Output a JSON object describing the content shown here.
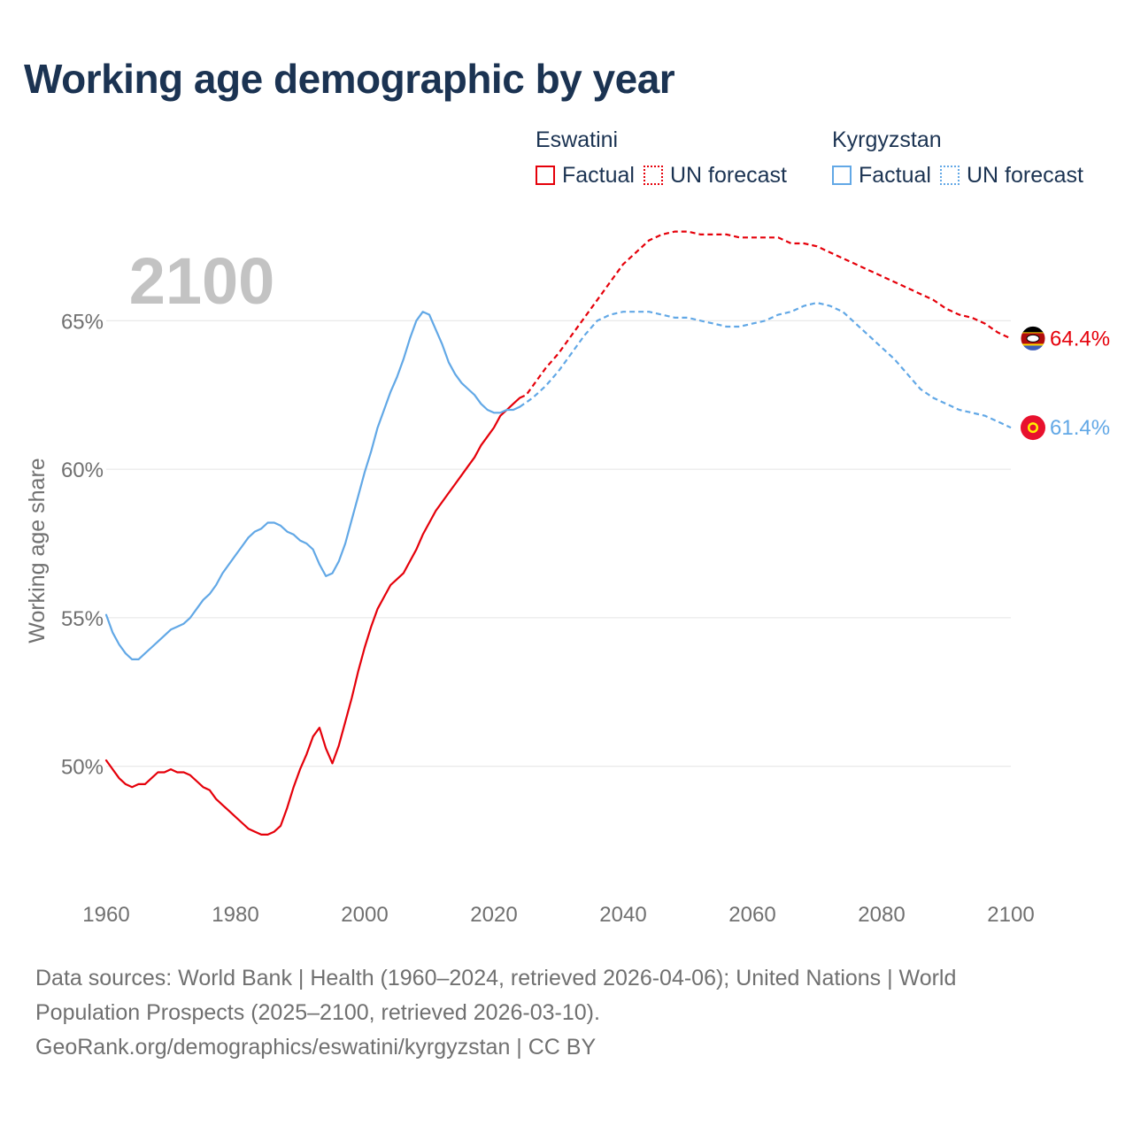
{
  "title": "Working age demographic by year",
  "legend": {
    "groups": [
      {
        "name": "Eswatini",
        "factual_label": "Factual",
        "forecast_label": "UN forecast",
        "color": "#e5000a"
      },
      {
        "name": "Kyrgyzstan",
        "factual_label": "Factual",
        "forecast_label": "UN forecast",
        "color": "#62a8e6"
      }
    ]
  },
  "source": {
    "line1": "Data sources: World Bank | Health (1960–2024, retrieved 2026-04-06); United Nations | World",
    "line2": "Population Prospects (2025–2100, retrieved 2026-03-10).",
    "line3": "GeoRank.org/demographics/eswatini/kyrgyzstan | CC BY"
  },
  "chart_data": {
    "type": "line",
    "title": "Working age demographic by year",
    "ylabel": "Working age share",
    "xlabel": "",
    "year_label": "2100",
    "xlim": [
      1960,
      2100
    ],
    "ylim": [
      46,
      69
    ],
    "x_ticks": [
      1960,
      1980,
      2000,
      2020,
      2040,
      2060,
      2080,
      2100
    ],
    "x_tick_labels": [
      "1960",
      "1980",
      "2000",
      "2020",
      "2040",
      "2060",
      "2080",
      "2100"
    ],
    "y_ticks": [
      50,
      55,
      60,
      65
    ],
    "y_tick_labels": [
      "50%",
      "55%",
      "60%",
      "65%"
    ],
    "forecast_start": 2024,
    "series": [
      {
        "name": "Eswatini",
        "color": "#e5000a",
        "end_label": "64.4%",
        "flag": "eswatini-flag",
        "points": [
          [
            1960,
            50.2
          ],
          [
            1961,
            49.9
          ],
          [
            1962,
            49.6
          ],
          [
            1963,
            49.4
          ],
          [
            1964,
            49.3
          ],
          [
            1965,
            49.4
          ],
          [
            1966,
            49.4
          ],
          [
            1967,
            49.6
          ],
          [
            1968,
            49.8
          ],
          [
            1969,
            49.8
          ],
          [
            1970,
            49.9
          ],
          [
            1971,
            49.8
          ],
          [
            1972,
            49.8
          ],
          [
            1973,
            49.7
          ],
          [
            1974,
            49.5
          ],
          [
            1975,
            49.3
          ],
          [
            1976,
            49.2
          ],
          [
            1977,
            48.9
          ],
          [
            1978,
            48.7
          ],
          [
            1979,
            48.5
          ],
          [
            1980,
            48.3
          ],
          [
            1981,
            48.1
          ],
          [
            1982,
            47.9
          ],
          [
            1983,
            47.8
          ],
          [
            1984,
            47.7
          ],
          [
            1985,
            47.7
          ],
          [
            1986,
            47.8
          ],
          [
            1987,
            48.0
          ],
          [
            1988,
            48.6
          ],
          [
            1989,
            49.3
          ],
          [
            1990,
            49.9
          ],
          [
            1991,
            50.4
          ],
          [
            1992,
            51.0
          ],
          [
            1993,
            51.3
          ],
          [
            1994,
            50.6
          ],
          [
            1995,
            50.1
          ],
          [
            1996,
            50.7
          ],
          [
            1997,
            51.5
          ],
          [
            1998,
            52.3
          ],
          [
            1999,
            53.2
          ],
          [
            2000,
            54.0
          ],
          [
            2001,
            54.7
          ],
          [
            2002,
            55.3
          ],
          [
            2003,
            55.7
          ],
          [
            2004,
            56.1
          ],
          [
            2005,
            56.3
          ],
          [
            2006,
            56.5
          ],
          [
            2007,
            56.9
          ],
          [
            2008,
            57.3
          ],
          [
            2009,
            57.8
          ],
          [
            2010,
            58.2
          ],
          [
            2011,
            58.6
          ],
          [
            2012,
            58.9
          ],
          [
            2013,
            59.2
          ],
          [
            2014,
            59.5
          ],
          [
            2015,
            59.8
          ],
          [
            2016,
            60.1
          ],
          [
            2017,
            60.4
          ],
          [
            2018,
            60.8
          ],
          [
            2019,
            61.1
          ],
          [
            2020,
            61.4
          ],
          [
            2021,
            61.8
          ],
          [
            2022,
            62.0
          ],
          [
            2023,
            62.2
          ],
          [
            2024,
            62.4
          ],
          [
            2025,
            62.5
          ],
          [
            2026,
            62.8
          ],
          [
            2028,
            63.4
          ],
          [
            2030,
            63.9
          ],
          [
            2032,
            64.5
          ],
          [
            2034,
            65.1
          ],
          [
            2036,
            65.7
          ],
          [
            2038,
            66.3
          ],
          [
            2040,
            66.9
          ],
          [
            2042,
            67.3
          ],
          [
            2044,
            67.7
          ],
          [
            2046,
            67.9
          ],
          [
            2048,
            68.0
          ],
          [
            2050,
            68.0
          ],
          [
            2052,
            67.9
          ],
          [
            2054,
            67.9
          ],
          [
            2056,
            67.9
          ],
          [
            2058,
            67.8
          ],
          [
            2060,
            67.8
          ],
          [
            2062,
            67.8
          ],
          [
            2064,
            67.8
          ],
          [
            2066,
            67.6
          ],
          [
            2068,
            67.6
          ],
          [
            2070,
            67.5
          ],
          [
            2072,
            67.3
          ],
          [
            2074,
            67.1
          ],
          [
            2076,
            66.9
          ],
          [
            2078,
            66.7
          ],
          [
            2080,
            66.5
          ],
          [
            2082,
            66.3
          ],
          [
            2084,
            66.1
          ],
          [
            2086,
            65.9
          ],
          [
            2088,
            65.7
          ],
          [
            2090,
            65.4
          ],
          [
            2092,
            65.2
          ],
          [
            2094,
            65.1
          ],
          [
            2096,
            64.9
          ],
          [
            2098,
            64.6
          ],
          [
            2100,
            64.4
          ]
        ]
      },
      {
        "name": "Kyrgyzstan",
        "color": "#62a8e6",
        "end_label": "61.4%",
        "flag": "kyrgyzstan-flag",
        "points": [
          [
            1960,
            55.1
          ],
          [
            1961,
            54.5
          ],
          [
            1962,
            54.1
          ],
          [
            1963,
            53.8
          ],
          [
            1964,
            53.6
          ],
          [
            1965,
            53.6
          ],
          [
            1966,
            53.8
          ],
          [
            1967,
            54.0
          ],
          [
            1968,
            54.2
          ],
          [
            1969,
            54.4
          ],
          [
            1970,
            54.6
          ],
          [
            1971,
            54.7
          ],
          [
            1972,
            54.8
          ],
          [
            1973,
            55.0
          ],
          [
            1974,
            55.3
          ],
          [
            1975,
            55.6
          ],
          [
            1976,
            55.8
          ],
          [
            1977,
            56.1
          ],
          [
            1978,
            56.5
          ],
          [
            1979,
            56.8
          ],
          [
            1980,
            57.1
          ],
          [
            1981,
            57.4
          ],
          [
            1982,
            57.7
          ],
          [
            1983,
            57.9
          ],
          [
            1984,
            58.0
          ],
          [
            1985,
            58.2
          ],
          [
            1986,
            58.2
          ],
          [
            1987,
            58.1
          ],
          [
            1988,
            57.9
          ],
          [
            1989,
            57.8
          ],
          [
            1990,
            57.6
          ],
          [
            1991,
            57.5
          ],
          [
            1992,
            57.3
          ],
          [
            1993,
            56.8
          ],
          [
            1994,
            56.4
          ],
          [
            1995,
            56.5
          ],
          [
            1996,
            56.9
          ],
          [
            1997,
            57.5
          ],
          [
            1998,
            58.3
          ],
          [
            1999,
            59.1
          ],
          [
            2000,
            59.9
          ],
          [
            2001,
            60.6
          ],
          [
            2002,
            61.4
          ],
          [
            2003,
            62.0
          ],
          [
            2004,
            62.6
          ],
          [
            2005,
            63.1
          ],
          [
            2006,
            63.7
          ],
          [
            2007,
            64.4
          ],
          [
            2008,
            65.0
          ],
          [
            2009,
            65.3
          ],
          [
            2010,
            65.2
          ],
          [
            2011,
            64.7
          ],
          [
            2012,
            64.2
          ],
          [
            2013,
            63.6
          ],
          [
            2014,
            63.2
          ],
          [
            2015,
            62.9
          ],
          [
            2016,
            62.7
          ],
          [
            2017,
            62.5
          ],
          [
            2018,
            62.2
          ],
          [
            2019,
            62.0
          ],
          [
            2020,
            61.9
          ],
          [
            2021,
            61.9
          ],
          [
            2022,
            62.0
          ],
          [
            2023,
            62.0
          ],
          [
            2024,
            62.1
          ],
          [
            2026,
            62.4
          ],
          [
            2028,
            62.8
          ],
          [
            2030,
            63.3
          ],
          [
            2032,
            63.9
          ],
          [
            2034,
            64.5
          ],
          [
            2036,
            65.0
          ],
          [
            2038,
            65.2
          ],
          [
            2040,
            65.3
          ],
          [
            2042,
            65.3
          ],
          [
            2044,
            65.3
          ],
          [
            2046,
            65.2
          ],
          [
            2048,
            65.1
          ],
          [
            2050,
            65.1
          ],
          [
            2052,
            65.0
          ],
          [
            2054,
            64.9
          ],
          [
            2056,
            64.8
          ],
          [
            2058,
            64.8
          ],
          [
            2060,
            64.9
          ],
          [
            2062,
            65.0
          ],
          [
            2064,
            65.2
          ],
          [
            2066,
            65.3
          ],
          [
            2068,
            65.5
          ],
          [
            2070,
            65.6
          ],
          [
            2072,
            65.5
          ],
          [
            2074,
            65.3
          ],
          [
            2076,
            64.9
          ],
          [
            2078,
            64.5
          ],
          [
            2080,
            64.1
          ],
          [
            2082,
            63.7
          ],
          [
            2084,
            63.2
          ],
          [
            2086,
            62.7
          ],
          [
            2088,
            62.4
          ],
          [
            2090,
            62.2
          ],
          [
            2092,
            62.0
          ],
          [
            2094,
            61.9
          ],
          [
            2096,
            61.8
          ],
          [
            2098,
            61.6
          ],
          [
            2100,
            61.4
          ]
        ]
      }
    ]
  }
}
